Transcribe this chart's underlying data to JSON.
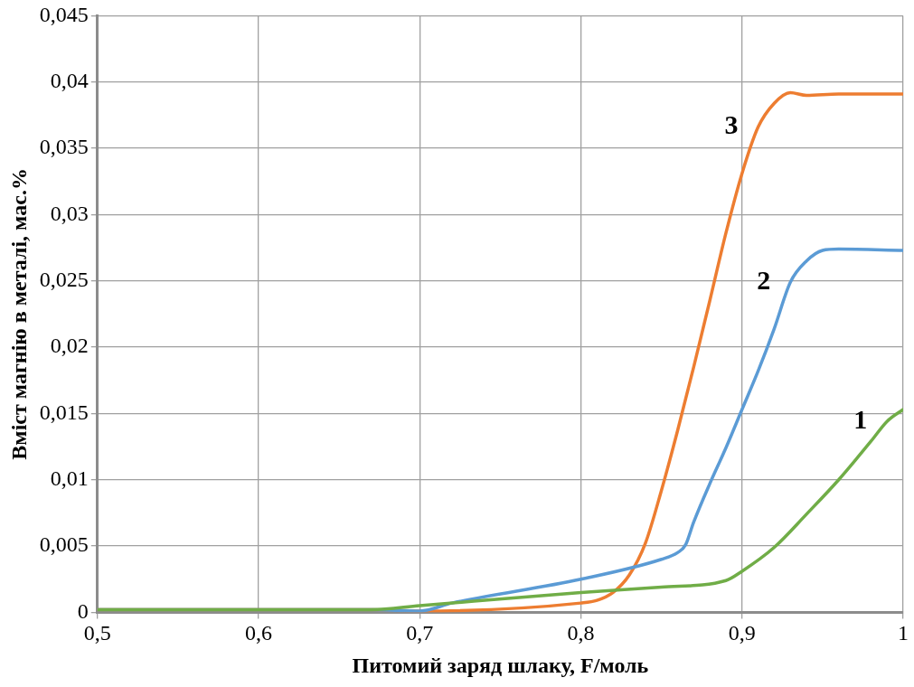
{
  "chart_data": {
    "type": "line",
    "xlabel": "Питомий заряд шлаку, F/моль",
    "ylabel": "Вміст магнію в металі, мас.%",
    "xlim": [
      0.5,
      1
    ],
    "ylim": [
      0,
      0.045
    ],
    "xticks": [
      {
        "value": 0.5,
        "label": "0,5"
      },
      {
        "value": 0.6,
        "label": "0,6"
      },
      {
        "value": 0.7,
        "label": "0,7"
      },
      {
        "value": 0.8,
        "label": "0,8"
      },
      {
        "value": 0.9,
        "label": "0,9"
      },
      1
    ],
    "yticks": [
      0,
      {
        "value": 0.005,
        "label": "0,005"
      },
      {
        "value": 0.01,
        "label": "0,01"
      },
      {
        "value": 0.015,
        "label": "0,015"
      },
      {
        "value": 0.02,
        "label": "0,02"
      },
      {
        "value": 0.025,
        "label": "0,025"
      },
      {
        "value": 0.03,
        "label": "0,03"
      },
      {
        "value": 0.035,
        "label": "0,035"
      },
      {
        "value": 0.04,
        "label": "0,04"
      },
      {
        "value": 0.045,
        "label": "0,045"
      }
    ],
    "grid": true,
    "legend": false,
    "marker": "none",
    "line_style": "solid",
    "series": [
      {
        "name": "1",
        "color": "#70ad47",
        "x": [
          0.5,
          0.67,
          0.7,
          0.8,
          0.85,
          0.89,
          0.9,
          0.92,
          0.94,
          0.96,
          0.98,
          0.99,
          1
        ],
        "values": [
          0.0002,
          0.0002,
          0.0005,
          0.0015,
          0.0019,
          0.0024,
          0.0031,
          0.0049,
          0.0074,
          0.01,
          0.0129,
          0.0144,
          0.0153
        ]
      },
      {
        "name": "2",
        "color": "#5b9bd5",
        "x": [
          0.5,
          0.67,
          0.7,
          0.72,
          0.8,
          0.85,
          0.86,
          0.865,
          0.87,
          0.88,
          0.89,
          0.9,
          0.91,
          0.92,
          0.93,
          0.94,
          0.95,
          0.96,
          1
        ],
        "values": [
          0.0002,
          0.0002,
          0.0001,
          0.0007,
          0.0025,
          0.004,
          0.0045,
          0.0051,
          0.0068,
          0.0097,
          0.0124,
          0.0153,
          0.0182,
          0.0214,
          0.0249,
          0.0265,
          0.0273,
          0.0274,
          0.0273
        ]
      },
      {
        "name": "3",
        "color": "#ed7d31",
        "x": [
          0.5,
          0.67,
          0.7,
          0.8,
          0.81,
          0.82,
          0.83,
          0.84,
          0.85,
          0.86,
          0.87,
          0.88,
          0.89,
          0.9,
          0.91,
          0.92,
          0.93,
          0.94,
          0.96,
          1
        ],
        "values": [
          0.0002,
          0.0002,
          0.0001,
          0.0007,
          0.0009,
          0.0015,
          0.0028,
          0.0052,
          0.0092,
          0.0137,
          0.0185,
          0.0235,
          0.0286,
          0.0331,
          0.0366,
          0.0384,
          0.0392,
          0.039,
          0.0391,
          0.0391
        ]
      }
    ]
  }
}
